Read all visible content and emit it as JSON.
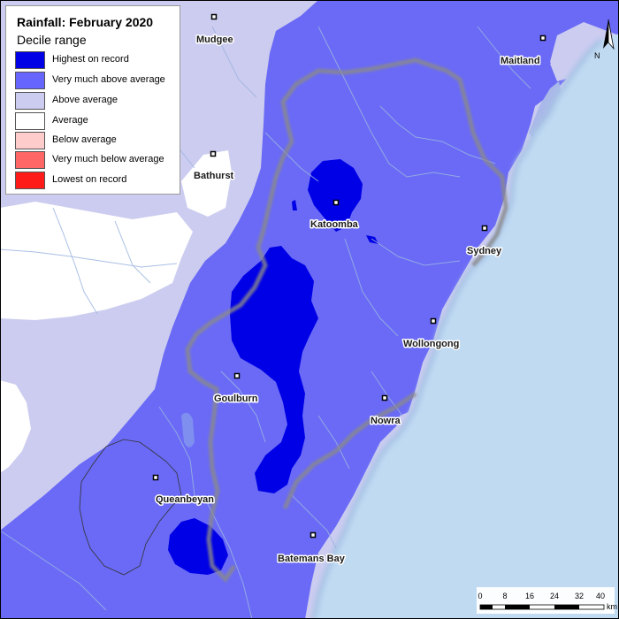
{
  "map": {
    "title": "Rainfall: February 2020",
    "subtitle": "Decile range",
    "legend": [
      {
        "label": "Highest on record",
        "color": "#0000e6"
      },
      {
        "label": "Very much above average",
        "color": "#6666ff"
      },
      {
        "label": "Above average",
        "color": "#ccccf0"
      },
      {
        "label": "Average",
        "color": "#ffffff"
      },
      {
        "label": "Below average",
        "color": "#ffcccc"
      },
      {
        "label": "Very much below average",
        "color": "#ff6666"
      },
      {
        "label": "Lowest on record",
        "color": "#ff1a1a"
      }
    ],
    "towns": {
      "mudgee": "Mudgee",
      "maitland": "Maitland",
      "bathurst": "Bathurst",
      "katoomba": "Katoomba",
      "sydney": "Sydney",
      "wollongong": "Wollongong",
      "goulburn": "Goulburn",
      "nowra": "Nowra",
      "queanbeyan": "Queanbeyan",
      "batemans_bay": "Batemans Bay"
    },
    "scale_bar": {
      "ticks": [
        "0",
        "8",
        "16",
        "24",
        "32",
        "40"
      ],
      "unit": "km"
    },
    "north_arrow": "N",
    "colors": {
      "ocean": "#c0daf2",
      "river": "#9bb4e0"
    }
  }
}
